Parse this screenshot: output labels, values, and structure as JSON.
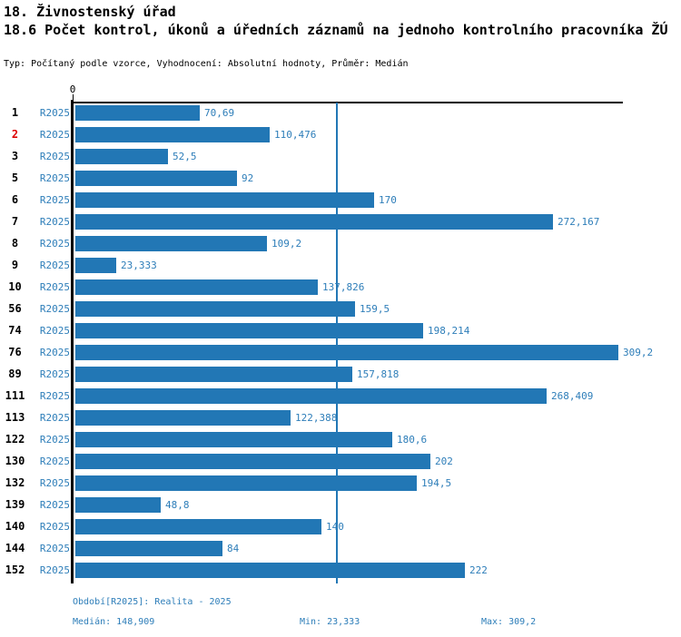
{
  "title": "18. Živnostenský úřad",
  "subtitle": "18.6 Počet kontrol, úkonů a úředních záznamů na jednoho kontrolního pracovníka ŽÚ",
  "meta_line": "Typ: Počítaný podle vzorce, Vyhodnocení: Absolutní hodnoty, Průměr: Medián",
  "axis": {
    "zero_label": "0"
  },
  "colors": {
    "bar": "#2277b5",
    "blue_text": "#2e7eb9",
    "median_line": "#2277b5",
    "highlight_red": "#dd0000",
    "axis_black": "#000000"
  },
  "chart_data": {
    "type": "bar",
    "orientation": "horizontal",
    "title": "18.6 Počet kontrol, úkonů a úředních záznamů na jednoho kontrolního pracovníka ŽÚ",
    "categories": [
      "1",
      "2",
      "3",
      "5",
      "6",
      "7",
      "8",
      "9",
      "10",
      "56",
      "74",
      "76",
      "89",
      "111",
      "113",
      "122",
      "130",
      "132",
      "139",
      "140",
      "144",
      "152"
    ],
    "highlighted_category": "2",
    "series": [
      {
        "name": "R2025",
        "values": [
          70.69,
          110.476,
          52.5,
          92,
          170,
          272.167,
          109.2,
          23.333,
          137.826,
          159.5,
          198.214,
          309.2,
          157.818,
          268.409,
          122.388,
          180.6,
          202,
          194.5,
          48.8,
          140,
          84,
          222
        ]
      }
    ],
    "value_labels": [
      "70,69",
      "110,476",
      "52,5",
      "92",
      "170",
      "272,167",
      "109,2",
      "23,333",
      "137,826",
      "159,5",
      "198,214",
      "309,2",
      "157,818",
      "268,409",
      "122,388",
      "180,6",
      "202",
      "194,5",
      "48,8",
      "140",
      "84",
      "222"
    ],
    "median_line_value": 148.909,
    "xlim": [
      0,
      312.35
    ],
    "grid": false,
    "legend": "none"
  },
  "footer": {
    "period": "Období[R2025]: Realita - 2025",
    "median": "Medián: 148,909",
    "min": "Min: 23,333",
    "max": "Max: 309,2"
  }
}
